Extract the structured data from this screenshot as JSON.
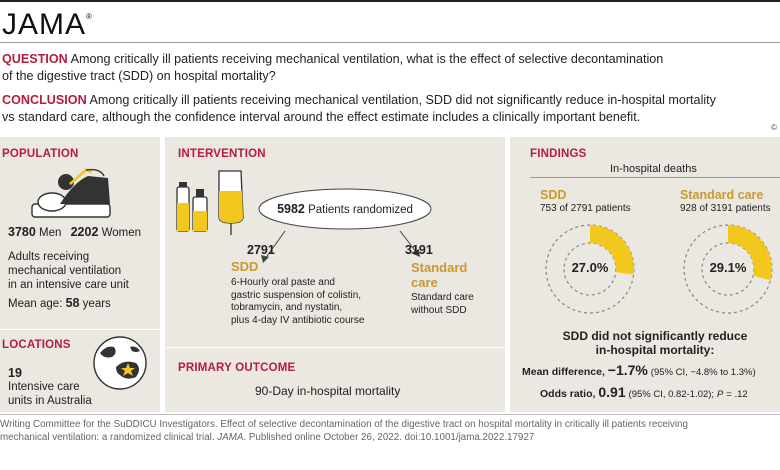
{
  "header": {
    "logo": "JAMA",
    "logo_mark": "®"
  },
  "question": {
    "label": "QUESTION",
    "line1": "Among critically ill patients receiving mechanical ventilation, what is the effect of selective decontamination",
    "line2": "of the digestive tract (SDD) on hospital mortality?"
  },
  "conclusion": {
    "label": "CONCLUSION",
    "line1": "Among critically ill patients receiving mechanical ventilation, SDD did not significantly reduce in-hospital mortality",
    "line2": "vs standard care, although the confidence interval around the effect estimate includes a clinically important benefit."
  },
  "copyright": "©",
  "population": {
    "title": "POPULATION",
    "men_count": "3780",
    "men_label": "Men",
    "women_count": "2202",
    "women_label": "Women",
    "desc1": "Adults receiving",
    "desc2": "mechanical ventilation",
    "desc3": "in an intensive care unit",
    "mean_age_label": "Mean age:",
    "mean_age_value": "58",
    "mean_age_unit": "years"
  },
  "locations": {
    "title": "LOCATIONS",
    "count": "19",
    "desc1": "Intensive care",
    "desc2": "units in Australia"
  },
  "intervention": {
    "title": "INTERVENTION",
    "randomized_count": "5982",
    "randomized_label": "Patients randomized",
    "sdd_count": "2791",
    "sdd_label": "SDD",
    "sdd_desc": [
      "6-Hourly oral paste and",
      "gastric suspension of colistin,",
      "tobramycin, and nystatin,",
      "plus 4-day IV antibiotic course"
    ],
    "std_count": "3191",
    "std_label1": "Standard",
    "std_label2": "care",
    "std_desc": [
      "Standard care",
      "without SDD"
    ]
  },
  "primary_outcome": {
    "title": "PRIMARY OUTCOME",
    "text": "90-Day in-hospital mortality"
  },
  "findings": {
    "title": "FINDINGS",
    "subtitle": "In-hospital deaths",
    "sdd": {
      "label": "SDD",
      "detail": "753 of 2791 patients",
      "percent_label": "27.0%",
      "fraction": 0.27
    },
    "standard": {
      "label": "Standard care",
      "detail": "928 of 3191 patients",
      "percent_label": "29.1%",
      "fraction": 0.291
    },
    "summary1": "SDD did not significantly reduce",
    "summary2": "in-hospital mortality:",
    "mean_diff_label": "Mean difference,",
    "mean_diff_value": "−1.7%",
    "mean_diff_ci": "(95% CI, −4.8% to 1.3%)",
    "odds_label": "Odds ratio,",
    "odds_value": "0.91",
    "odds_ci": "(95% CI, 0.82-1.02);",
    "p_label": "P",
    "p_value": "= .12"
  },
  "citation": {
    "line1": "Writing Committee for the SuDDICU Investigators. Effect of selective decontamination of the digestive tract on hospital mortality in critically ill patients receiving",
    "line2a": "mechanical ventilation: a randomized clinical trial.",
    "journal": "JAMA",
    "line2b": ". Published online October 26, 2022. doi:10.1001/jama.2022.17927"
  },
  "colors": {
    "accent": "#b71c3c",
    "gold": "#c89b2c",
    "donut_fill": "#f2c81f",
    "panel": "#ebe7e1"
  }
}
